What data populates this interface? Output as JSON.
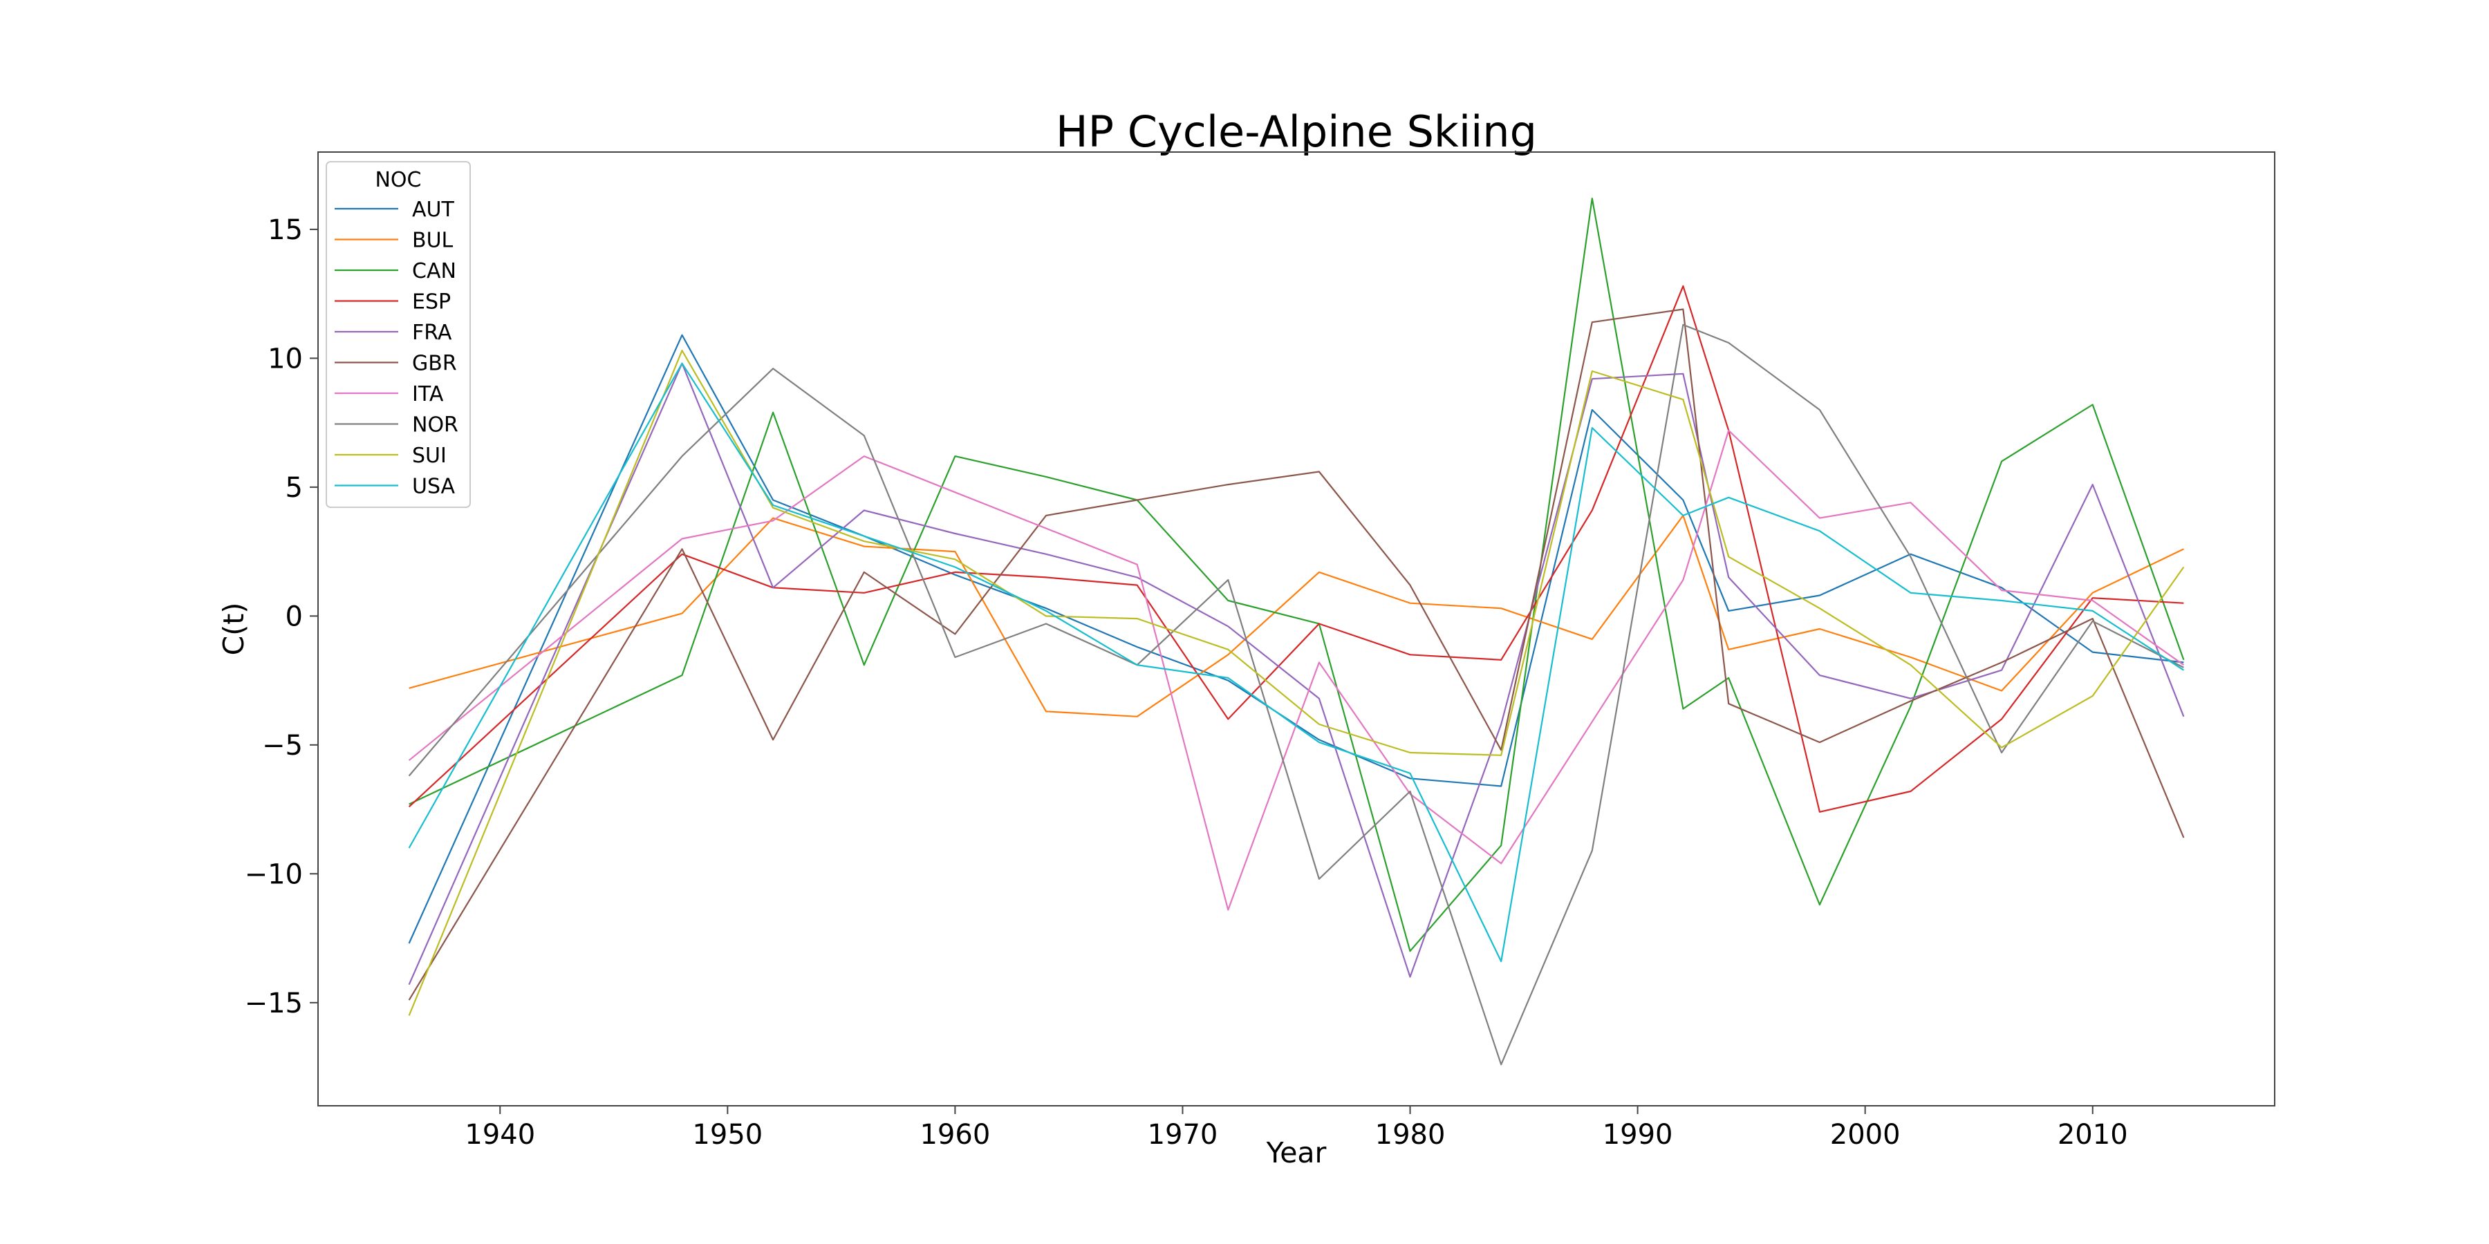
{
  "chart_data": {
    "type": "line",
    "title": "HP Cycle-Alpine Skiing",
    "xlabel": "Year",
    "ylabel": "C(t)",
    "xlim": [
      1932,
      2018
    ],
    "ylim": [
      -19,
      18
    ],
    "x_ticks": [
      1940,
      1950,
      1960,
      1970,
      1980,
      1990,
      2000,
      2010
    ],
    "y_ticks": [
      -15,
      -10,
      -5,
      0,
      5,
      10,
      15
    ],
    "grid": false,
    "legend": {
      "title": "NOC",
      "placement": "top-left"
    },
    "x": [
      1936,
      1948,
      1952,
      1956,
      1960,
      1964,
      1968,
      1972,
      1976,
      1980,
      1984,
      1988,
      1992,
      1994,
      1998,
      2002,
      2006,
      2010,
      2014
    ],
    "series": [
      {
        "name": "AUT",
        "color": "#1f77b4",
        "values": [
          -12.7,
          10.9,
          4.5,
          3.1,
          1.6,
          0.3,
          -1.2,
          -2.5,
          -4.8,
          -6.3,
          -6.6,
          8.0,
          4.5,
          0.2,
          0.8,
          2.4,
          1.1,
          -1.4,
          -1.8
        ]
      },
      {
        "name": "BUL",
        "color": "#ff7f0e",
        "values": [
          -2.8,
          0.1,
          3.8,
          2.7,
          2.5,
          -3.7,
          -3.9,
          -1.5,
          1.7,
          0.5,
          0.3,
          -0.9,
          3.9,
          -1.3,
          -0.5,
          -1.6,
          -2.9,
          0.9,
          2.6
        ]
      },
      {
        "name": "CAN",
        "color": "#2ca02c",
        "values": [
          -7.3,
          -2.3,
          7.9,
          -1.9,
          6.2,
          5.4,
          4.5,
          0.6,
          -0.3,
          -13.0,
          -8.9,
          16.2,
          -3.6,
          -2.4,
          -11.2,
          -3.5,
          6.0,
          8.2,
          -1.7
        ]
      },
      {
        "name": "ESP",
        "color": "#d62728",
        "values": [
          -7.4,
          2.4,
          1.1,
          0.9,
          1.7,
          1.5,
          1.2,
          -4.0,
          -0.3,
          -1.5,
          -1.7,
          4.1,
          12.8,
          7.2,
          -7.6,
          -6.8,
          -4.0,
          0.7,
          0.5
        ]
      },
      {
        "name": "FRA",
        "color": "#9467bd",
        "values": [
          -14.3,
          9.8,
          1.1,
          4.1,
          3.2,
          2.4,
          1.5,
          -0.4,
          -3.2,
          -14.0,
          -4.2,
          9.2,
          9.4,
          1.5,
          -2.3,
          -3.2,
          -2.1,
          5.1,
          -3.9
        ]
      },
      {
        "name": "GBR",
        "color": "#8c564b",
        "values": [
          -14.9,
          2.6,
          -4.8,
          1.7,
          -0.7,
          3.9,
          4.5,
          5.1,
          5.6,
          1.2,
          -5.2,
          11.4,
          11.9,
          -3.4,
          -4.9,
          -3.3,
          -1.8,
          -0.1,
          -8.6
        ]
      },
      {
        "name": "ITA",
        "color": "#e377c2",
        "values": [
          -5.6,
          3.0,
          3.7,
          6.2,
          4.8,
          3.4,
          2.0,
          -11.4,
          -1.8,
          -6.9,
          -9.6,
          -4.1,
          1.4,
          7.2,
          3.8,
          4.4,
          1.0,
          0.6,
          -1.9
        ]
      },
      {
        "name": "NOR",
        "color": "#7f7f7f",
        "values": [
          -6.2,
          6.2,
          9.6,
          7.0,
          -1.6,
          -0.3,
          -1.9,
          1.4,
          -10.2,
          -6.8,
          -17.4,
          -9.1,
          11.3,
          10.6,
          8.0,
          2.3,
          -5.3,
          -0.2,
          -2.0
        ]
      },
      {
        "name": "SUI",
        "color": "#bcbd22",
        "values": [
          -15.5,
          10.3,
          4.2,
          2.9,
          2.2,
          0.0,
          -0.1,
          -1.3,
          -4.2,
          -5.3,
          -5.4,
          9.5,
          8.4,
          2.3,
          0.3,
          -1.9,
          -5.1,
          -3.1,
          1.9
        ]
      },
      {
        "name": "USA",
        "color": "#17becf",
        "values": [
          -9.0,
          9.8,
          4.3,
          3.1,
          1.9,
          0.2,
          -1.9,
          -2.4,
          -4.9,
          -6.1,
          -13.4,
          7.3,
          3.9,
          4.6,
          3.3,
          0.9,
          0.6,
          0.2,
          -2.1
        ]
      }
    ]
  }
}
